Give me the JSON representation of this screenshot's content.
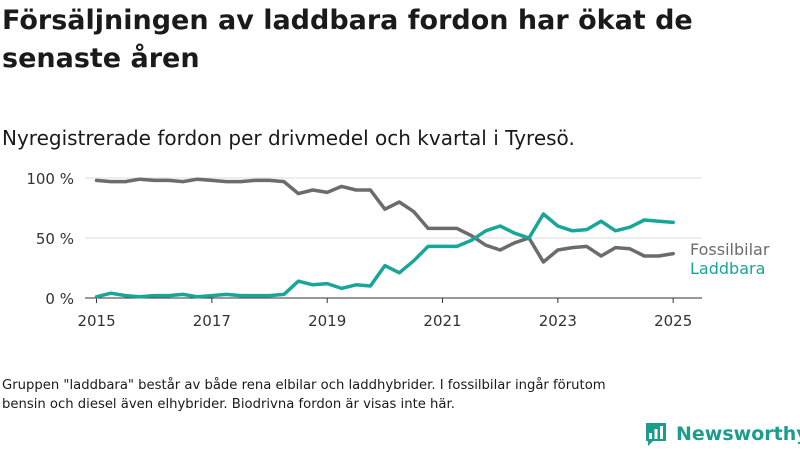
{
  "title": "Försäljningen av laddbara fordon har ökat de senaste åren",
  "subtitle": "Nyregistrerade fordon per drivmedel och kvartal i Tyresö.",
  "note": "Gruppen \"laddbara\" består av både rena elbilar och laddhybrider. I fossilbilar ingår förutom bensin och diesel även elhybrider. Biodrivna fordon är visas inte här.",
  "brand": {
    "name": "Newsworthy",
    "logo_icon": "newsworthy-logo-icon",
    "color": "#1c9c8c"
  },
  "chart_data": {
    "type": "line",
    "title": "Försäljningen av laddbara fordon har ökat de senaste åren",
    "subtitle": "Nyregistrerade fordon per drivmedel och kvartal i Tyresö.",
    "xlabel": "",
    "ylabel": "",
    "xlim": [
      2014.8,
      2025.5
    ],
    "ylim": [
      0,
      100
    ],
    "x_ticks": [
      2015,
      2017,
      2019,
      2021,
      2023,
      2025
    ],
    "y_ticks": [
      {
        "value": 0,
        "label": "0 %"
      },
      {
        "value": 50,
        "label": "50 %"
      },
      {
        "value": 100,
        "label": "100 %"
      }
    ],
    "grid": true,
    "legend": "right, at line ends",
    "x": [
      2015.0,
      2015.25,
      2015.5,
      2015.75,
      2016.0,
      2016.25,
      2016.5,
      2016.75,
      2017.0,
      2017.25,
      2017.5,
      2017.75,
      2018.0,
      2018.25,
      2018.5,
      2018.75,
      2019.0,
      2019.25,
      2019.5,
      2019.75,
      2020.0,
      2020.25,
      2020.5,
      2020.75,
      2021.0,
      2021.25,
      2021.5,
      2021.75,
      2022.0,
      2022.25,
      2022.5,
      2022.75,
      2023.0,
      2023.25,
      2023.5,
      2023.75,
      2024.0,
      2024.25,
      2024.5,
      2024.75,
      2025.0
    ],
    "series": [
      {
        "name": "Fossilbilar",
        "color": "#6b6b70",
        "values": [
          98,
          97,
          97,
          99,
          98,
          98,
          97,
          99,
          98,
          97,
          97,
          98,
          98,
          97,
          87,
          90,
          88,
          93,
          90,
          90,
          74,
          80,
          72,
          58,
          58,
          58,
          52,
          44,
          40,
          46,
          50,
          30,
          40,
          42,
          43,
          35,
          42,
          41,
          35,
          35,
          37
        ]
      },
      {
        "name": "Laddbara",
        "color": "#17a697",
        "values": [
          1,
          4,
          2,
          1,
          2,
          2,
          3,
          1,
          2,
          3,
          2,
          2,
          2,
          3,
          14,
          11,
          12,
          8,
          11,
          10,
          27,
          21,
          31,
          43,
          43,
          43,
          48,
          56,
          60,
          54,
          50,
          70,
          60,
          56,
          57,
          64,
          56,
          59,
          65,
          64,
          63
        ]
      }
    ]
  }
}
